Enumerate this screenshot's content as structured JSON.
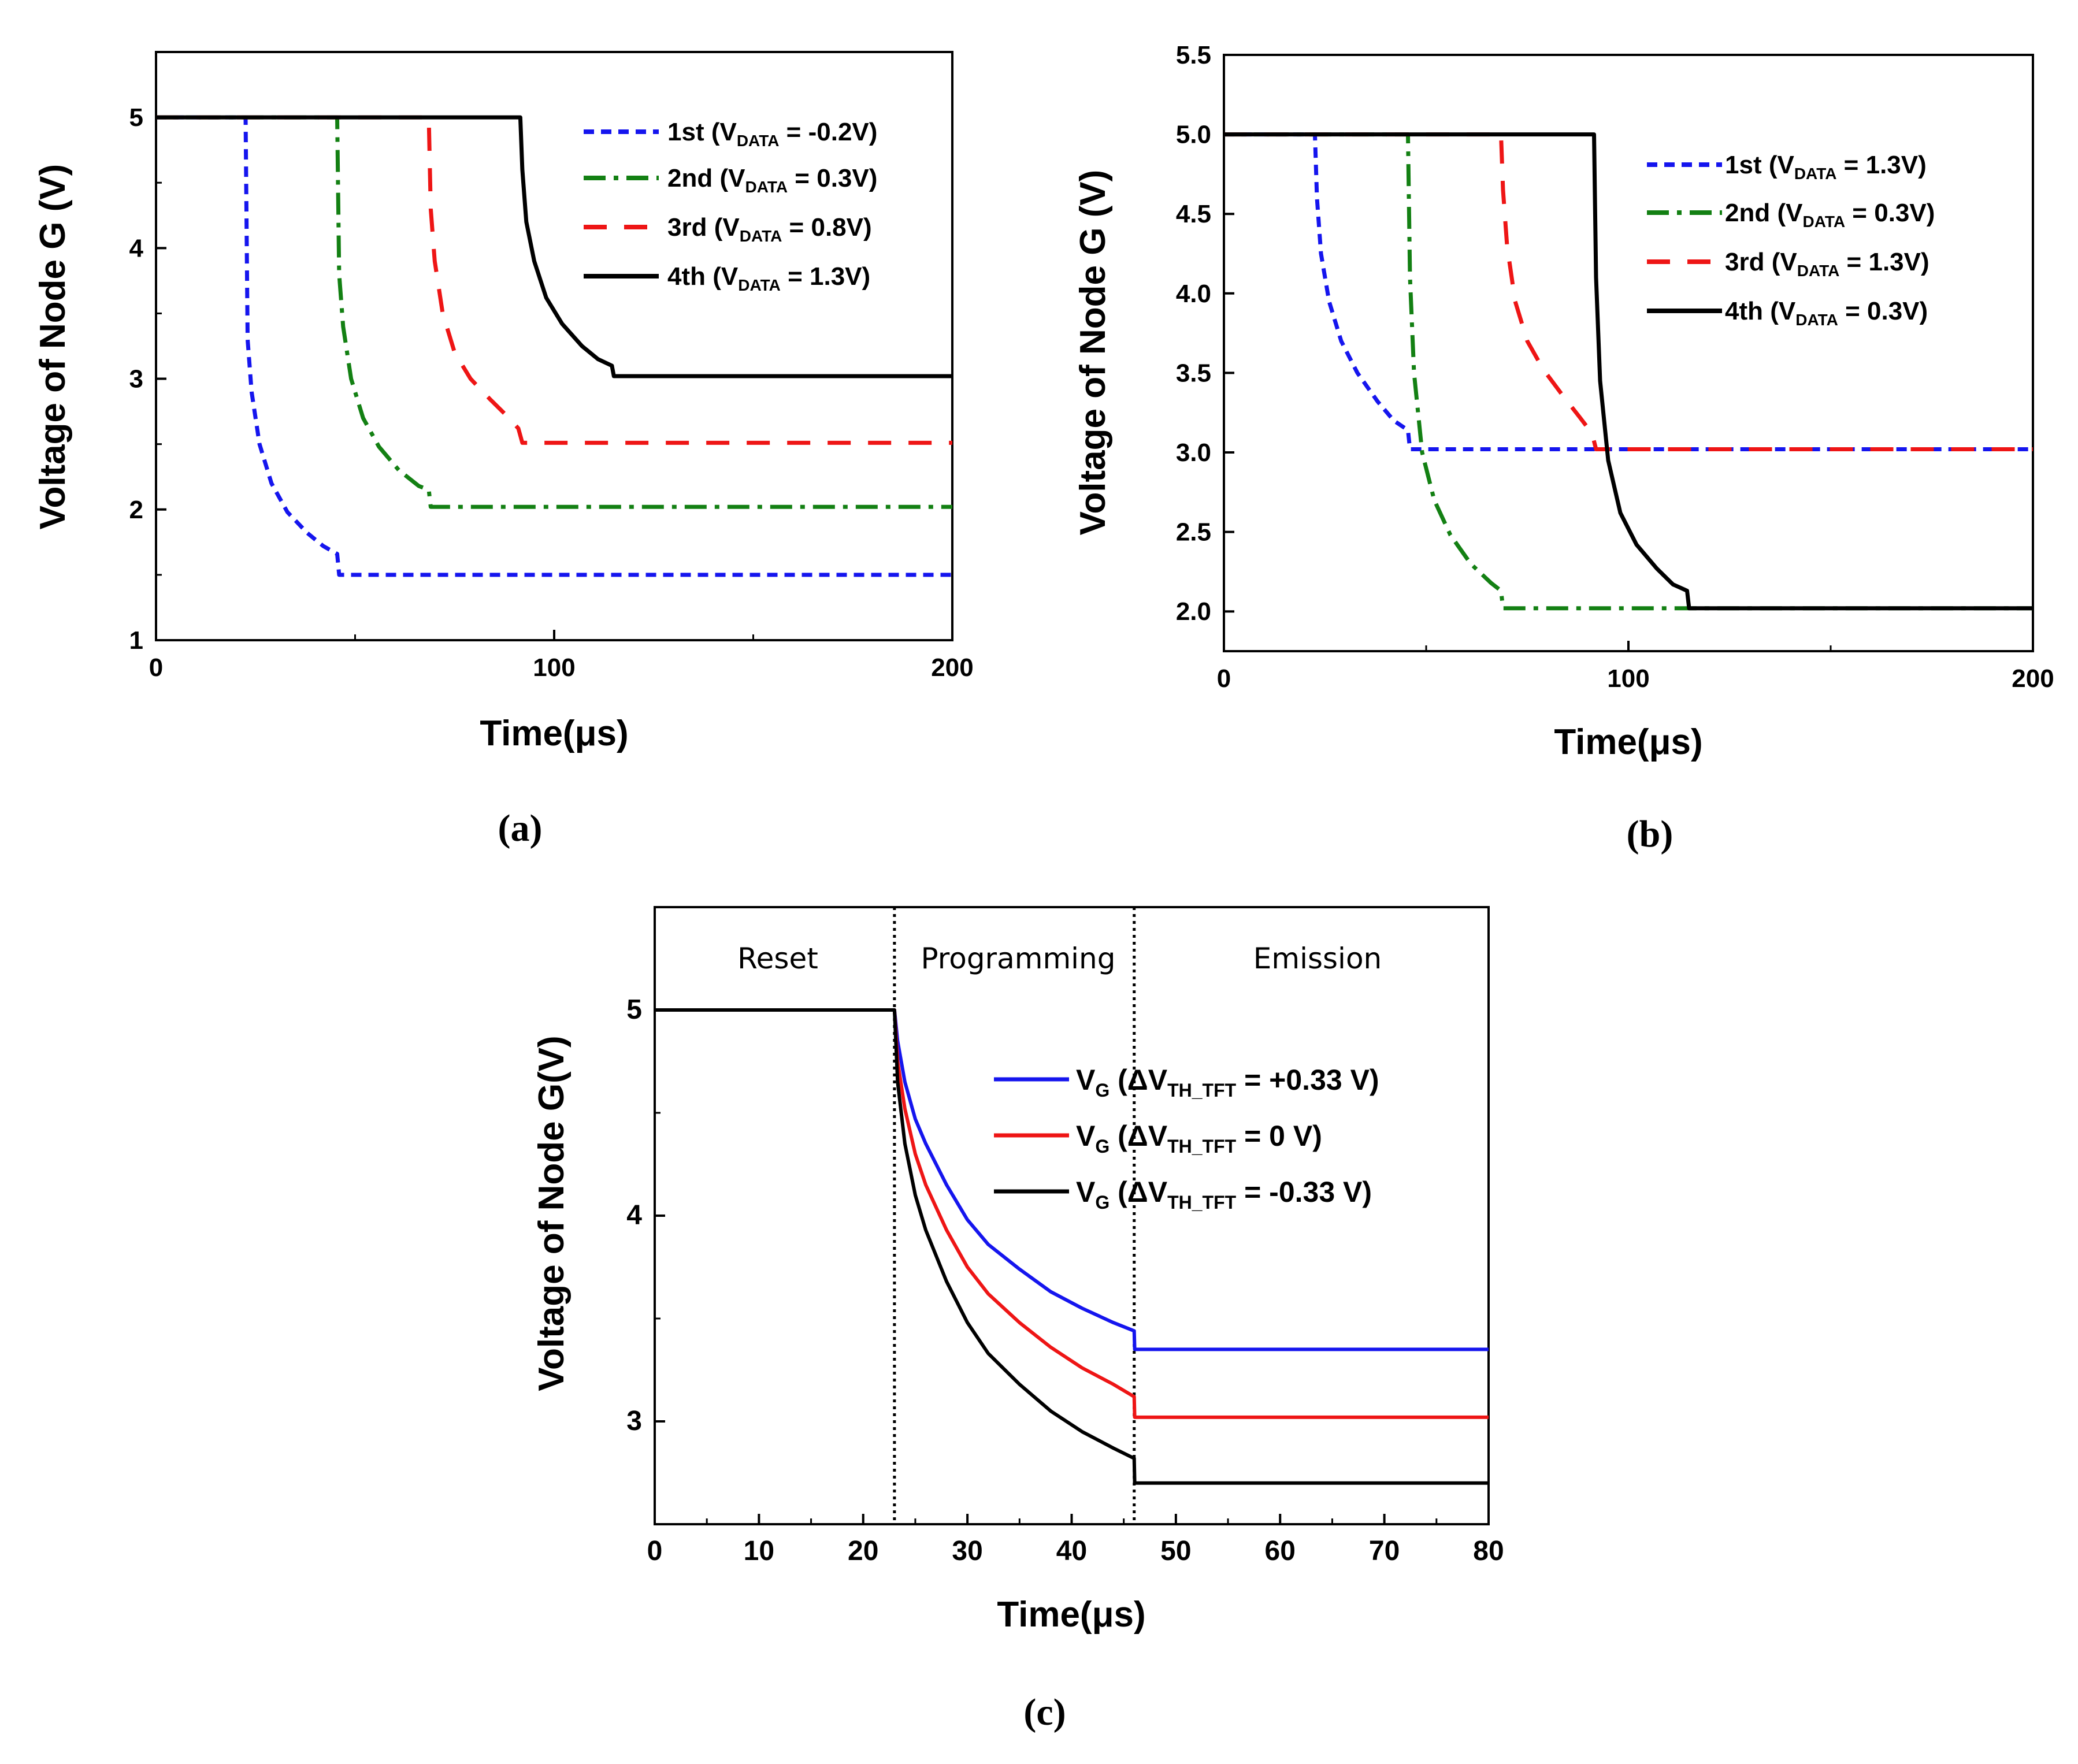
{
  "colors": {
    "blue": "#1515ee",
    "green": "#138013",
    "red": "#ee1515",
    "black": "#000000"
  },
  "chart_data": [
    {
      "type": "line",
      "panel": "a",
      "caption": "(a)",
      "xlabel": "Time(μs)",
      "ylabel": "Voltage of Node G (V)",
      "xlim": [
        0,
        200
      ],
      "ylim": [
        1,
        5.5
      ],
      "xticks": [
        0,
        100,
        200
      ],
      "xtick_labels": [
        "0",
        "100",
        "200"
      ],
      "yticks": [
        1,
        2,
        3,
        4,
        5
      ],
      "ytick_labels": [
        "1",
        "2",
        "3",
        "4",
        "5"
      ],
      "series": [
        {
          "name": "1st",
          "vdata": "-0.2V",
          "color": "blue",
          "dash": "dash-short",
          "x": [
            0,
            22.5,
            23,
            24,
            26,
            29,
            33,
            38,
            42,
            45.5,
            46,
            200
          ],
          "y": [
            5,
            5,
            3.3,
            2.9,
            2.5,
            2.2,
            1.98,
            1.82,
            1.72,
            1.66,
            1.5,
            1.5
          ]
        },
        {
          "name": "2nd",
          "vdata": "0.3V",
          "color": "green",
          "dash": "dash-dot",
          "x": [
            0,
            45.5,
            46,
            47,
            49,
            52,
            56,
            61,
            66,
            68.5,
            69,
            200
          ],
          "y": [
            5,
            5,
            3.8,
            3.4,
            3.0,
            2.7,
            2.48,
            2.3,
            2.18,
            2.15,
            2.02,
            2.02
          ]
        },
        {
          "name": "3rd",
          "vdata": "0.8V",
          "color": "red",
          "dash": "dash-long",
          "x": [
            0,
            68.5,
            69,
            70,
            72,
            75,
            79,
            84,
            88,
            91,
            92,
            200
          ],
          "y": [
            5,
            5,
            4.3,
            3.9,
            3.5,
            3.2,
            3.0,
            2.84,
            2.72,
            2.62,
            2.51,
            2.51
          ]
        },
        {
          "name": "4th",
          "vdata": "1.3V",
          "color": "black",
          "dash": "solid",
          "x": [
            0,
            91.5,
            92,
            93,
            95,
            98,
            102,
            107,
            111,
            114.5,
            115,
            200
          ],
          "y": [
            5,
            5,
            4.6,
            4.2,
            3.9,
            3.62,
            3.42,
            3.25,
            3.15,
            3.1,
            3.02,
            3.02
          ]
        }
      ],
      "legend_position": "top-right"
    },
    {
      "type": "line",
      "panel": "b",
      "caption": "(b)",
      "xlabel": "Time(μs)",
      "ylabel": "Voltage of Node G (V)",
      "xlim": [
        0,
        200
      ],
      "ylim": [
        1.75,
        5.5
      ],
      "xticks": [
        0,
        100,
        200
      ],
      "xtick_labels": [
        "0",
        "100",
        "200"
      ],
      "yticks": [
        2.0,
        2.5,
        3.0,
        3.5,
        4.0,
        4.5,
        5.0,
        5.5
      ],
      "ytick_labels": [
        "2.0",
        "2.5",
        "3.0",
        "3.5",
        "4.0",
        "4.5",
        "5.0",
        "5.5"
      ],
      "series": [
        {
          "name": "1st",
          "vdata": "1.3V",
          "color": "blue",
          "dash": "dash-short",
          "x": [
            0,
            22.5,
            23,
            24,
            26,
            29,
            33,
            38,
            42,
            45.5,
            46,
            200
          ],
          "y": [
            5,
            5,
            4.6,
            4.25,
            3.95,
            3.7,
            3.5,
            3.32,
            3.2,
            3.14,
            3.02,
            3.02
          ]
        },
        {
          "name": "2nd",
          "vdata": "0.3V",
          "color": "green",
          "dash": "dash-dot",
          "x": [
            0,
            45.5,
            46,
            47,
            49,
            52,
            56,
            61,
            66,
            68.5,
            69,
            200
          ],
          "y": [
            5,
            5,
            4.1,
            3.5,
            3.0,
            2.7,
            2.48,
            2.3,
            2.18,
            2.13,
            2.02,
            2.02
          ]
        },
        {
          "name": "3rd",
          "vdata": "1.3V",
          "color": "red",
          "dash": "dash-long",
          "x": [
            0,
            68.5,
            69,
            70,
            72,
            75,
            79,
            84,
            88,
            91,
            92,
            200
          ],
          "y": [
            5,
            5,
            4.65,
            4.3,
            3.95,
            3.7,
            3.52,
            3.35,
            3.22,
            3.12,
            3.02,
            3.02
          ]
        },
        {
          "name": "4th",
          "vdata": "0.3V",
          "color": "black",
          "dash": "solid",
          "x": [
            0,
            91.5,
            92,
            93,
            95,
            98,
            102,
            107,
            111,
            114.5,
            115,
            200
          ],
          "y": [
            5,
            5,
            4.1,
            3.45,
            2.95,
            2.62,
            2.42,
            2.27,
            2.17,
            2.13,
            2.02,
            2.02
          ]
        }
      ],
      "legend_position": "top-right"
    },
    {
      "type": "line",
      "panel": "c",
      "caption": "(c)",
      "xlabel": "Time(μs)",
      "ylabel": "Voltage of Node G(V)",
      "xlim": [
        0,
        80
      ],
      "ylim": [
        2.5,
        5.5
      ],
      "xticks": [
        0,
        10,
        20,
        30,
        40,
        50,
        60,
        70,
        80
      ],
      "xtick_labels": [
        "0",
        "10",
        "20",
        "30",
        "40",
        "50",
        "60",
        "70",
        "80"
      ],
      "yticks": [
        3,
        4,
        5
      ],
      "ytick_labels": [
        "3",
        "4",
        "5"
      ],
      "regions": [
        {
          "label": "Reset",
          "from": 0,
          "to": 23
        },
        {
          "label": "Programming",
          "from": 23,
          "to": 46
        },
        {
          "label": "Emission",
          "from": 46,
          "to": 80
        }
      ],
      "dividers": [
        23,
        46
      ],
      "series": [
        {
          "name": "V",
          "sub": "G",
          "delta": "(ΔV",
          "delta_sub": "TH_TFT",
          "value": " = +0.33 V)",
          "color": "blue",
          "x": [
            0,
            23,
            23.3,
            24,
            25,
            26,
            28,
            30,
            32,
            35,
            38,
            41,
            44,
            46,
            46.05,
            80
          ],
          "y": [
            5,
            5,
            4.85,
            4.65,
            4.47,
            4.35,
            4.15,
            3.98,
            3.86,
            3.74,
            3.63,
            3.55,
            3.48,
            3.44,
            3.35,
            3.35
          ]
        },
        {
          "name": "V",
          "sub": "G",
          "delta": "(ΔV",
          "delta_sub": "TH_TFT",
          "value": " = 0 V)",
          "color": "red",
          "x": [
            0,
            23,
            23.3,
            24,
            25,
            26,
            28,
            30,
            32,
            35,
            38,
            41,
            44,
            46,
            46.05,
            80
          ],
          "y": [
            5,
            5,
            4.75,
            4.52,
            4.3,
            4.15,
            3.93,
            3.75,
            3.62,
            3.48,
            3.36,
            3.26,
            3.18,
            3.12,
            3.02,
            3.02
          ]
        },
        {
          "name": "V",
          "sub": "G",
          "delta": "(ΔV",
          "delta_sub": "TH_TFT",
          "value": " = -0.33 V)",
          "color": "black",
          "x": [
            0,
            23,
            23.3,
            24,
            25,
            26,
            28,
            30,
            32,
            35,
            38,
            41,
            44,
            46,
            46.05,
            80
          ],
          "y": [
            5,
            5,
            4.65,
            4.35,
            4.1,
            3.93,
            3.68,
            3.48,
            3.33,
            3.18,
            3.05,
            2.95,
            2.87,
            2.82,
            2.7,
            2.7
          ]
        }
      ],
      "legend_position": "upper-right"
    }
  ]
}
